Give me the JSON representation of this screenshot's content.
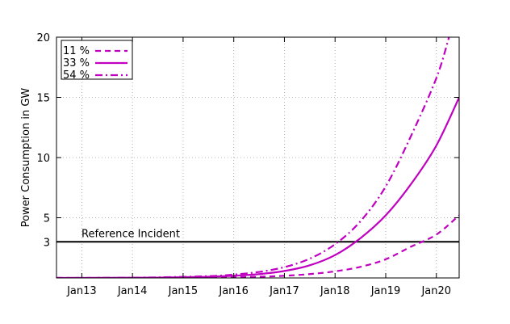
{
  "chart_data": {
    "type": "line",
    "title": "",
    "xlabel": "",
    "ylabel": "Power Consumption in GW",
    "x_ticks": [
      "Jan13",
      "Jan14",
      "Jan15",
      "Jan16",
      "Jan17",
      "Jan18",
      "Jan19",
      "Jan20"
    ],
    "x_tick_values": [
      2013.0,
      2014.0,
      2015.0,
      2016.0,
      2017.0,
      2018.0,
      2019.0,
      2020.0
    ],
    "xlim": [
      2012.5,
      2020.45
    ],
    "y_ticks": [
      "3",
      "5",
      "10",
      "15",
      "20"
    ],
    "y_tick_values": [
      3,
      5,
      10,
      15,
      20
    ],
    "ylim": [
      0,
      20
    ],
    "grid": true,
    "legend_position": "top-left",
    "series": [
      {
        "name": "11 %",
        "style": "dashed",
        "color": "#c000c0",
        "x": [
          2012.5,
          2013.5,
          2014.5,
          2015.5,
          2016.0,
          2016.5,
          2017.0,
          2017.5,
          2018.0,
          2018.5,
          2019.0,
          2019.5,
          2020.0,
          2020.45
        ],
        "y": [
          0.0,
          0.0,
          0.01,
          0.03,
          0.06,
          0.1,
          0.18,
          0.32,
          0.55,
          0.92,
          1.55,
          2.6,
          3.6,
          5.2
        ]
      },
      {
        "name": "33 %",
        "style": "solid",
        "color": "#c000c0",
        "x": [
          2012.5,
          2013.5,
          2014.5,
          2015.5,
          2016.0,
          2016.5,
          2017.0,
          2017.5,
          2018.0,
          2018.5,
          2019.0,
          2019.5,
          2020.0,
          2020.45
        ],
        "y": [
          0.0,
          0.01,
          0.03,
          0.1,
          0.18,
          0.32,
          0.58,
          1.05,
          1.9,
          3.3,
          5.2,
          7.8,
          11.0,
          15.0
        ]
      },
      {
        "name": "54 %",
        "style": "dashdot",
        "color": "#c000c0",
        "x": [
          2012.5,
          2013.5,
          2014.5,
          2015.5,
          2016.0,
          2016.5,
          2017.0,
          2017.5,
          2018.0,
          2018.5,
          2019.0,
          2019.5,
          2020.0,
          2020.25
        ],
        "y": [
          0.0,
          0.01,
          0.05,
          0.15,
          0.28,
          0.5,
          0.9,
          1.6,
          2.8,
          4.7,
          7.6,
          11.8,
          16.6,
          20.0
        ]
      }
    ],
    "reference_line": {
      "label": "Reference Incident",
      "y": 3,
      "color": "#000000"
    }
  }
}
